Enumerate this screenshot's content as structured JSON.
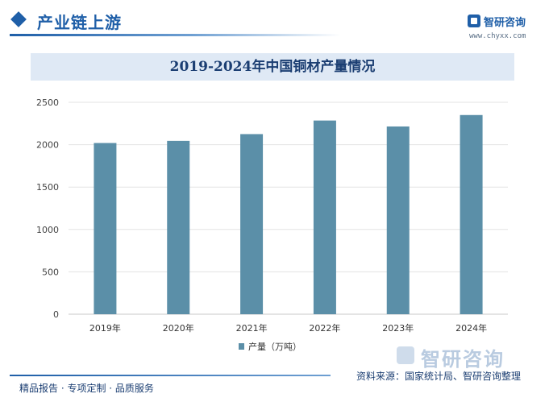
{
  "header": {
    "section_title": "产业链上游",
    "logo_name": "智研咨询",
    "logo_url": "www.chyxx.com"
  },
  "chart_data": {
    "type": "bar",
    "title": "2019-2024年中国铜材产量情况",
    "categories": [
      "2019年",
      "2020年",
      "2021年",
      "2022年",
      "2023年",
      "2024年"
    ],
    "series": [
      {
        "name": "产量（万吨）",
        "values": [
          2020,
          2045,
          2125,
          2285,
          2215,
          2350
        ]
      }
    ],
    "ylim": [
      0,
      2500
    ],
    "yticks": [
      0,
      500,
      1000,
      1500,
      2000,
      2500
    ],
    "grid": true,
    "legend": "bottom",
    "color": "#5b8fa8"
  },
  "footer": {
    "tagline": "精品报告 · 专项定制 · 品质服务",
    "source": "资料来源：国家统计局、智研咨询整理",
    "watermark_brand": "智研咨询"
  }
}
